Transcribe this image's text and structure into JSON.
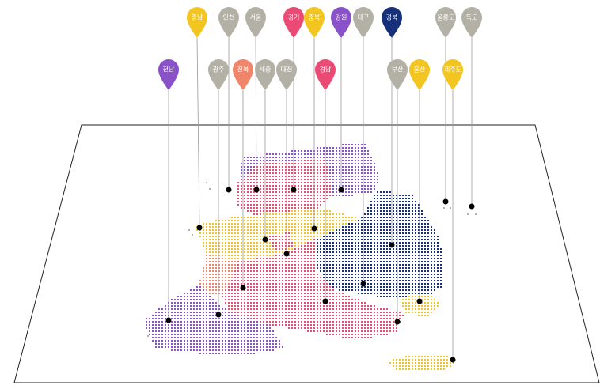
{
  "colors": {
    "yellow": "#f2c521",
    "gray": "#b3b0a6",
    "pink": "#ea4a73",
    "purple": "#8a52c8",
    "navy": "#16317a",
    "salmon": "#f0856a",
    "dot": "#000000",
    "plane": "#222222"
  },
  "pins": [
    {
      "id": "chungnam",
      "label": "충남",
      "color": "yellow"
    },
    {
      "id": "incheon",
      "label": "인천",
      "color": "gray"
    },
    {
      "id": "seoul",
      "label": "서울",
      "color": "gray"
    },
    {
      "id": "gyeonggi",
      "label": "경기",
      "color": "pink"
    },
    {
      "id": "chungbuk",
      "label": "충북",
      "color": "yellow"
    },
    {
      "id": "gangwon",
      "label": "강원",
      "color": "purple"
    },
    {
      "id": "daegu",
      "label": "대구",
      "color": "gray"
    },
    {
      "id": "gyeongbuk",
      "label": "경북",
      "color": "navy"
    },
    {
      "id": "ulleungdo",
      "label": "울릉도",
      "color": "gray"
    },
    {
      "id": "dokdo",
      "label": "독도",
      "color": "gray"
    },
    {
      "id": "jeonnam",
      "label": "전남",
      "color": "purple"
    },
    {
      "id": "gwangju",
      "label": "광주",
      "color": "gray"
    },
    {
      "id": "jeonbuk",
      "label": "전북",
      "color": "salmon"
    },
    {
      "id": "sejong",
      "label": "세종",
      "color": "gray"
    },
    {
      "id": "daejeon",
      "label": "대전",
      "color": "gray"
    },
    {
      "id": "gyeongnam",
      "label": "경남",
      "color": "pink"
    },
    {
      "id": "busan",
      "label": "부산",
      "color": "gray"
    },
    {
      "id": "ulsan",
      "label": "울산",
      "color": "yellow"
    },
    {
      "id": "jeju",
      "label": "제주도",
      "color": "yellow"
    }
  ]
}
